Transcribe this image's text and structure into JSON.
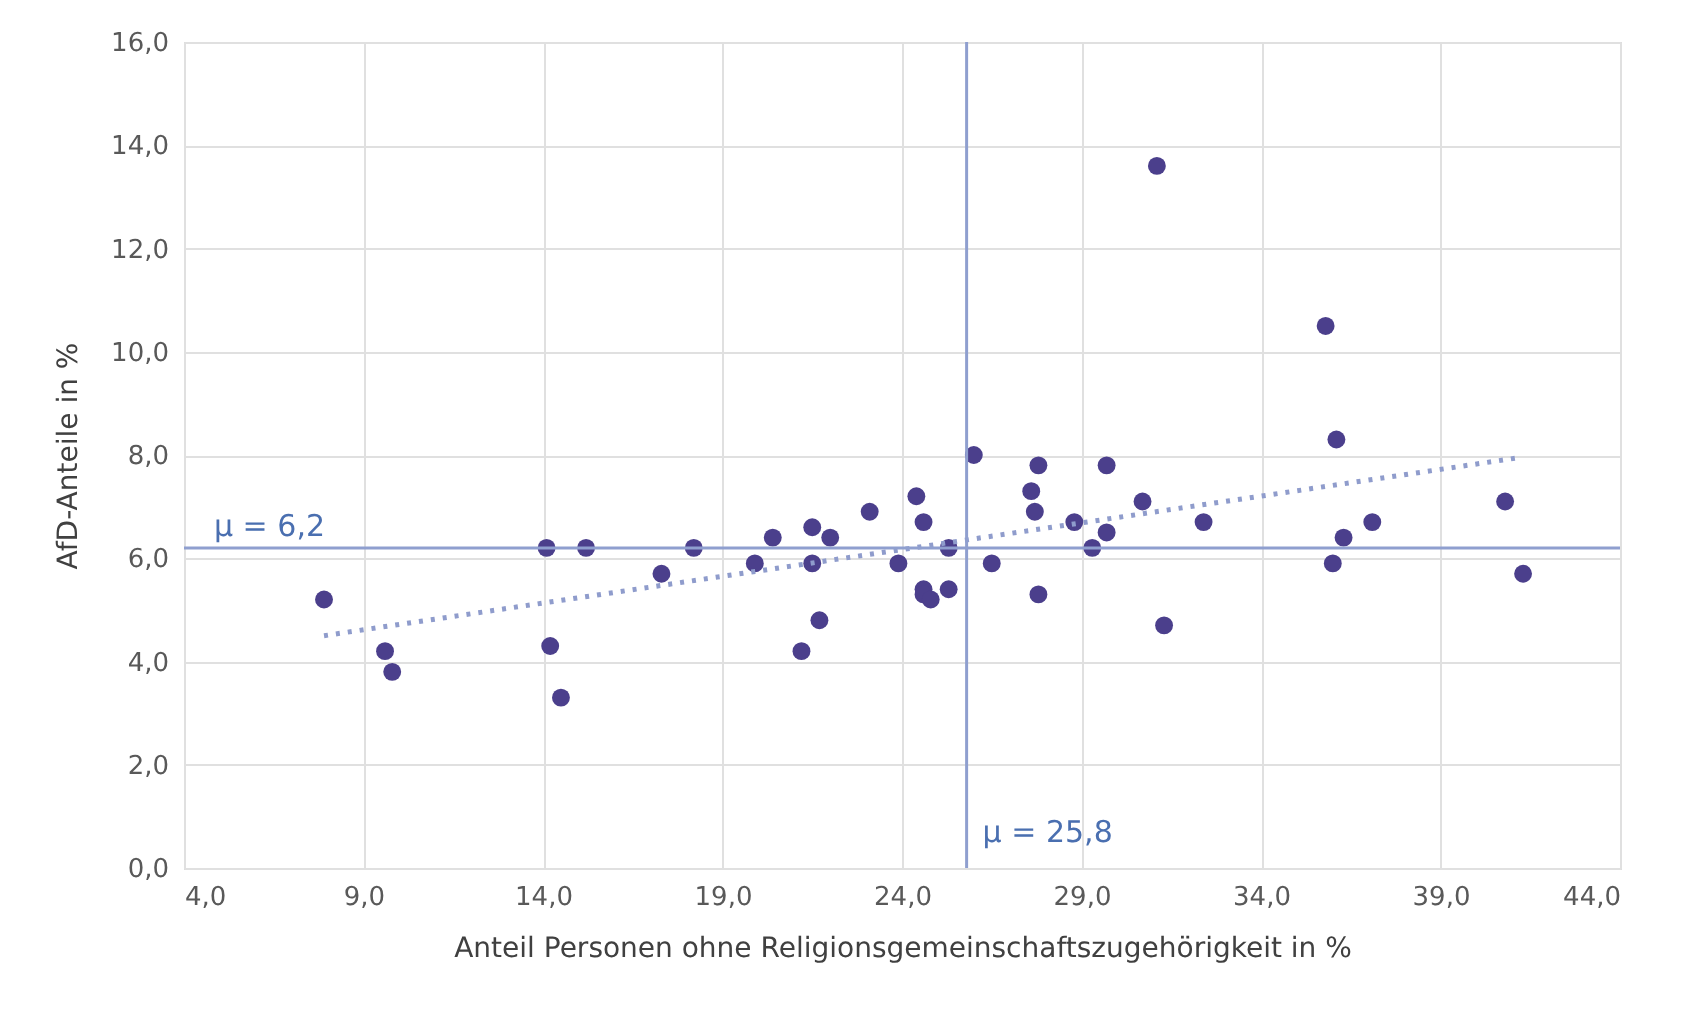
{
  "chart_data": {
    "type": "scatter",
    "xlabel": "Anteil Personen ohne Religionsgemeinschaftszugehörigkeit in %",
    "ylabel": "AfD-Anteile in %",
    "marker": "circle",
    "grid": true,
    "xlim": [
      4,
      44
    ],
    "ylim": [
      0,
      16
    ],
    "xticks": [
      {
        "value": 4,
        "label": "4,0"
      },
      {
        "value": 9,
        "label": "9,0"
      },
      {
        "value": 14,
        "label": "14,0"
      },
      {
        "value": 19,
        "label": "19,0"
      },
      {
        "value": 24,
        "label": "24,0"
      },
      {
        "value": 29,
        "label": "29,0"
      },
      {
        "value": 34,
        "label": "34,0"
      },
      {
        "value": 39,
        "label": "39,0"
      },
      {
        "value": 44,
        "label": "44,0"
      }
    ],
    "yticks": [
      {
        "value": 0,
        "label": "0,0"
      },
      {
        "value": 2,
        "label": "2,0"
      },
      {
        "value": 4,
        "label": "4,0"
      },
      {
        "value": 6,
        "label": "6,0"
      },
      {
        "value": 8,
        "label": "8,0"
      },
      {
        "value": 10,
        "label": "10,0"
      },
      {
        "value": 12,
        "label": "12,0"
      },
      {
        "value": 14,
        "label": "14,0"
      },
      {
        "value": 16,
        "label": "16,0"
      }
    ],
    "series": [
      {
        "color": "#4b3f8c",
        "x": [
          7.9,
          9.6,
          9.8,
          14.1,
          14.2,
          14.5,
          15.2,
          17.3,
          18.2,
          19.9,
          20.4,
          21.2,
          21.5,
          21.5,
          21.7,
          22.0,
          23.1,
          23.9,
          24.4,
          24.6,
          24.6,
          24.6,
          24.8,
          25.3,
          25.3,
          26.0,
          26.5,
          27.6,
          27.7,
          27.8,
          27.8,
          28.8,
          29.3,
          29.7,
          29.7,
          30.7,
          31.1,
          31.3,
          32.4,
          35.8,
          36.1,
          36.0,
          36.3,
          37.1,
          40.8,
          41.3
        ],
        "values": [
          5.2,
          4.2,
          3.8,
          6.2,
          4.3,
          3.3,
          6.2,
          5.7,
          6.2,
          5.9,
          6.4,
          4.2,
          6.6,
          5.9,
          4.8,
          6.4,
          6.9,
          5.9,
          7.2,
          6.7,
          5.4,
          5.3,
          5.2,
          6.2,
          5.4,
          8.0,
          5.9,
          7.3,
          6.9,
          7.8,
          5.3,
          6.7,
          6.2,
          7.8,
          6.5,
          7.1,
          13.6,
          4.7,
          6.7,
          10.5,
          8.3,
          5.9,
          6.4,
          6.7,
          7.1,
          5.7
        ]
      },
      {
        "type": "line",
        "line_style": "dotted",
        "marker": "none",
        "color": "#8f9ccc",
        "x": [
          7.9,
          41.2
        ],
        "values": [
          4.5,
          7.95
        ]
      }
    ],
    "ref_lines": [
      {
        "axis": "y",
        "value": 6.2,
        "label": "μ = 6,2",
        "color": "#8f9fcf"
      },
      {
        "axis": "x",
        "value": 25.8,
        "label": "μ = 25,8",
        "color": "#8f9fcf"
      }
    ]
  }
}
